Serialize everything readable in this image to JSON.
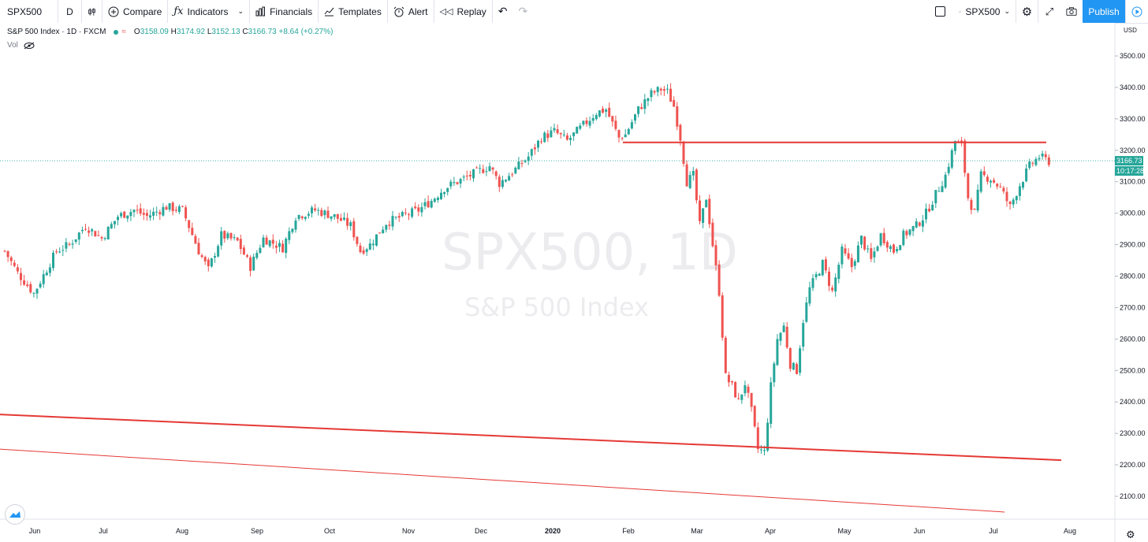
{
  "toolbar": {
    "symbol": "SPX500",
    "interval": "D",
    "compare": "Compare",
    "indicators": "Indicators",
    "financials": "Financials",
    "templates": "Templates",
    "alert": "Alert",
    "replay": "Replay",
    "layout_symbol": "SPX500",
    "publish": "Publish"
  },
  "legend": {
    "title": "S&P 500 Index · 1D · FXCM",
    "open_label": "O",
    "open": "3158.09",
    "high_label": "H",
    "high": "3174.92",
    "low_label": "L",
    "low": "3152.13",
    "close_label": "C",
    "close": "3166.73",
    "change": "+8.64 (+0.27%)",
    "vol_label": "Vol"
  },
  "watermark": {
    "symbol": "SPX500, 1D",
    "name": "S&P 500 Index"
  },
  "price_scale": {
    "currency": "USD",
    "last_price": "3166.73",
    "countdown": "10:17:28",
    "ticks": [
      "3500.00",
      "3400.00",
      "3300.00",
      "3200.00",
      "3100.00",
      "3000.00",
      "2900.00",
      "2800.00",
      "2700.00",
      "2600.00",
      "2500.00",
      "2400.00",
      "2300.00",
      "2200.00",
      "2100.00"
    ]
  },
  "time_axis": [
    "Jun",
    "Jul",
    "Aug",
    "Sep",
    "Oct",
    "Nov",
    "Dec",
    "2020",
    "Feb",
    "Mar",
    "Apr",
    "May",
    "Jun",
    "Jul",
    "Aug"
  ],
  "colors": {
    "up": "#26a69a",
    "down": "#ef5350",
    "trendline": "#e53935",
    "accent": "#2196f3"
  },
  "icons": [
    "candles-icon",
    "compare-icon",
    "indicators-icon",
    "financials-icon",
    "templates-icon",
    "alert-icon",
    "replay-icon",
    "undo-icon",
    "redo-icon",
    "fullscreen-box-icon",
    "cloud-icon",
    "settings-icon",
    "expand-icon",
    "camera-icon",
    "play-icon",
    "eye-icon",
    "tradingview-logo-icon",
    "gear-icon"
  ],
  "chart_data": {
    "type": "candlestick",
    "symbol": "SPX500",
    "timeframe": "1D",
    "ylim": [
      2050,
      3560
    ],
    "last_close": 3166.73,
    "horizontal_line": 3225,
    "trendlines": [
      {
        "from": [
          "May 2019",
          2360
        ],
        "to": [
          "Jul 2020",
          2215
        ]
      },
      {
        "from": [
          "May 2019",
          2250
        ],
        "to": [
          "Jul 2020",
          2050
        ]
      }
    ],
    "path": [
      [
        0,
        2880
      ],
      [
        4,
        2810
      ],
      [
        9,
        2745
      ],
      [
        16,
        2880
      ],
      [
        20,
        2900
      ],
      [
        25,
        2960
      ],
      [
        30,
        2920
      ],
      [
        35,
        2990
      ],
      [
        40,
        3010
      ],
      [
        44,
        2990
      ],
      [
        50,
        3020
      ],
      [
        55,
        3010
      ],
      [
        60,
        2880
      ],
      [
        63,
        2820
      ],
      [
        67,
        2930
      ],
      [
        72,
        2910
      ],
      [
        76,
        2830
      ],
      [
        80,
        2920
      ],
      [
        86,
        2890
      ],
      [
        90,
        2990
      ],
      [
        96,
        3010
      ],
      [
        102,
        2990
      ],
      [
        107,
        2960
      ],
      [
        110,
        2880
      ],
      [
        113,
        2900
      ],
      [
        118,
        2970
      ],
      [
        123,
        2990
      ],
      [
        128,
        3010
      ],
      [
        132,
        3040
      ],
      [
        136,
        3080
      ],
      [
        140,
        3100
      ],
      [
        144,
        3120
      ],
      [
        148,
        3140
      ],
      [
        150,
        3150
      ],
      [
        153,
        3095
      ],
      [
        157,
        3130
      ],
      [
        162,
        3180
      ],
      [
        166,
        3240
      ],
      [
        170,
        3260
      ],
      [
        174,
        3230
      ],
      [
        179,
        3280
      ],
      [
        183,
        3320
      ],
      [
        186,
        3330
      ],
      [
        190,
        3240
      ],
      [
        192,
        3250
      ],
      [
        196,
        3330
      ],
      [
        200,
        3380
      ],
      [
        203,
        3395
      ],
      [
        205,
        3385
      ],
      [
        207,
        3340
      ],
      [
        209,
        3240
      ],
      [
        211,
        3100
      ],
      [
        213,
        3120
      ],
      [
        215,
        2960
      ],
      [
        217,
        3050
      ],
      [
        219,
        2900
      ],
      [
        221,
        2750
      ],
      [
        223,
        2480
      ],
      [
        225,
        2450
      ],
      [
        227,
        2400
      ],
      [
        229,
        2460
      ],
      [
        231,
        2370
      ],
      [
        233,
        2250
      ],
      [
        235,
        2240
      ],
      [
        237,
        2450
      ],
      [
        239,
        2600
      ],
      [
        241,
        2640
      ],
      [
        243,
        2520
      ],
      [
        245,
        2500
      ],
      [
        247,
        2660
      ],
      [
        249,
        2760
      ],
      [
        251,
        2800
      ],
      [
        253,
        2840
      ],
      [
        256,
        2750
      ],
      [
        259,
        2880
      ],
      [
        262,
        2830
      ],
      [
        265,
        2920
      ],
      [
        268,
        2850
      ],
      [
        271,
        2930
      ],
      [
        275,
        2880
      ],
      [
        278,
        2930
      ],
      [
        282,
        2960
      ],
      [
        285,
        3000
      ],
      [
        288,
        3060
      ],
      [
        291,
        3120
      ],
      [
        294,
        3230
      ],
      [
        296,
        3215
      ],
      [
        298,
        3050
      ],
      [
        300,
        3000
      ],
      [
        302,
        3120
      ],
      [
        305,
        3110
      ],
      [
        308,
        3080
      ],
      [
        311,
        3020
      ],
      [
        314,
        3090
      ],
      [
        317,
        3150
      ],
      [
        320,
        3180
      ],
      [
        323,
        3165
      ]
    ]
  }
}
